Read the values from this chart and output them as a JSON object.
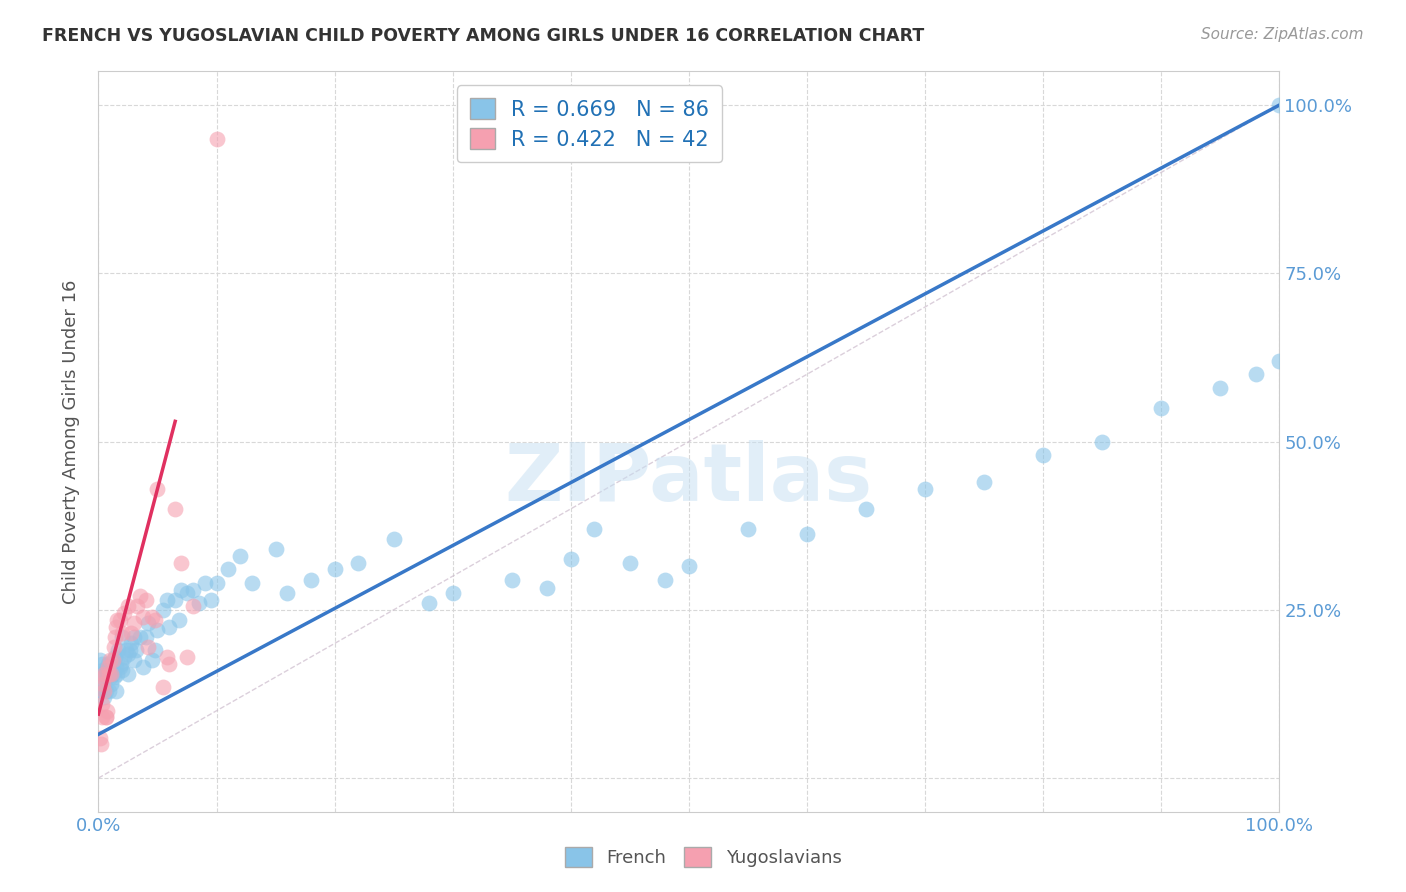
{
  "title": "FRENCH VS YUGOSLAVIAN CHILD POVERTY AMONG GIRLS UNDER 16 CORRELATION CHART",
  "source": "Source: ZipAtlas.com",
  "ylabel": "Child Poverty Among Girls Under 16",
  "watermark": "ZIPatlas",
  "french_R": 0.669,
  "french_N": 86,
  "yugoslav_R": 0.422,
  "yugoslav_N": 42,
  "french_color": "#89c4e8",
  "yugoslav_color": "#f5a0b0",
  "french_line_color": "#3878c8",
  "yugoslav_line_color": "#e03060",
  "background_color": "#ffffff",
  "grid_color": "#d8d8d8",
  "tick_label_color": "#5b9bd5",
  "xlim": [
    0.0,
    1.0
  ],
  "ylim": [
    -0.05,
    1.05
  ],
  "xticks": [
    0.0,
    0.1,
    0.2,
    0.3,
    0.4,
    0.5,
    0.6,
    0.7,
    0.8,
    0.9,
    1.0
  ],
  "yticks": [
    0.0,
    0.25,
    0.5,
    0.75,
    1.0
  ],
  "xtick_labels": [
    "0.0%",
    "",
    "",
    "",
    "",
    "",
    "",
    "",
    "",
    "",
    "100.0%"
  ],
  "ytick_labels_right": [
    "",
    "25.0%",
    "50.0%",
    "75.0%",
    "100.0%"
  ],
  "french_scatter_x": [
    0.001,
    0.002,
    0.003,
    0.003,
    0.004,
    0.004,
    0.005,
    0.005,
    0.006,
    0.006,
    0.007,
    0.008,
    0.008,
    0.009,
    0.01,
    0.01,
    0.011,
    0.012,
    0.013,
    0.014,
    0.015,
    0.015,
    0.016,
    0.017,
    0.018,
    0.019,
    0.02,
    0.02,
    0.022,
    0.023,
    0.025,
    0.025,
    0.027,
    0.028,
    0.03,
    0.03,
    0.032,
    0.035,
    0.038,
    0.04,
    0.042,
    0.045,
    0.048,
    0.05,
    0.055,
    0.058,
    0.06,
    0.065,
    0.068,
    0.07,
    0.075,
    0.08,
    0.085,
    0.09,
    0.095,
    0.1,
    0.11,
    0.12,
    0.13,
    0.15,
    0.16,
    0.18,
    0.2,
    0.22,
    0.25,
    0.28,
    0.3,
    0.35,
    0.38,
    0.4,
    0.42,
    0.45,
    0.48,
    0.5,
    0.55,
    0.6,
    0.65,
    0.7,
    0.75,
    0.8,
    0.85,
    0.9,
    0.95,
    0.98,
    1.0,
    1.0
  ],
  "french_scatter_y": [
    0.175,
    0.155,
    0.13,
    0.17,
    0.15,
    0.16,
    0.12,
    0.14,
    0.16,
    0.13,
    0.15,
    0.16,
    0.17,
    0.13,
    0.15,
    0.16,
    0.14,
    0.155,
    0.15,
    0.18,
    0.13,
    0.165,
    0.155,
    0.19,
    0.165,
    0.17,
    0.16,
    0.21,
    0.18,
    0.19,
    0.155,
    0.185,
    0.19,
    0.2,
    0.175,
    0.21,
    0.19,
    0.21,
    0.165,
    0.21,
    0.23,
    0.175,
    0.19,
    0.22,
    0.25,
    0.265,
    0.225,
    0.265,
    0.235,
    0.28,
    0.275,
    0.28,
    0.26,
    0.29,
    0.265,
    0.29,
    0.31,
    0.33,
    0.29,
    0.34,
    0.275,
    0.295,
    0.31,
    0.32,
    0.355,
    0.26,
    0.275,
    0.295,
    0.282,
    0.325,
    0.37,
    0.32,
    0.295,
    0.315,
    0.37,
    0.362,
    0.4,
    0.43,
    0.44,
    0.48,
    0.5,
    0.55,
    0.58,
    0.6,
    0.62,
    1.0
  ],
  "yugoslav_scatter_x": [
    0.001,
    0.002,
    0.003,
    0.003,
    0.004,
    0.004,
    0.005,
    0.005,
    0.006,
    0.006,
    0.007,
    0.008,
    0.009,
    0.01,
    0.011,
    0.012,
    0.013,
    0.014,
    0.015,
    0.016,
    0.018,
    0.02,
    0.022,
    0.025,
    0.028,
    0.03,
    0.033,
    0.035,
    0.038,
    0.04,
    0.042,
    0.045,
    0.048,
    0.05,
    0.055,
    0.058,
    0.06,
    0.065,
    0.07,
    0.075,
    0.08,
    0.1
  ],
  "yugoslav_scatter_y": [
    0.06,
    0.05,
    0.09,
    0.11,
    0.14,
    0.15,
    0.155,
    0.13,
    0.09,
    0.09,
    0.1,
    0.165,
    0.155,
    0.175,
    0.155,
    0.175,
    0.195,
    0.21,
    0.225,
    0.235,
    0.235,
    0.215,
    0.245,
    0.255,
    0.215,
    0.23,
    0.255,
    0.27,
    0.24,
    0.265,
    0.195,
    0.24,
    0.235,
    0.43,
    0.135,
    0.18,
    0.17,
    0.4,
    0.32,
    0.18,
    0.255,
    0.95
  ],
  "french_line_x0": 0.0,
  "french_line_x1": 1.0,
  "french_line_y0": 0.065,
  "french_line_y1": 1.0,
  "yugoslav_line_x0": 0.0,
  "yugoslav_line_x1": 0.065,
  "yugoslav_line_y0": 0.095,
  "yugoslav_line_y1": 0.53
}
